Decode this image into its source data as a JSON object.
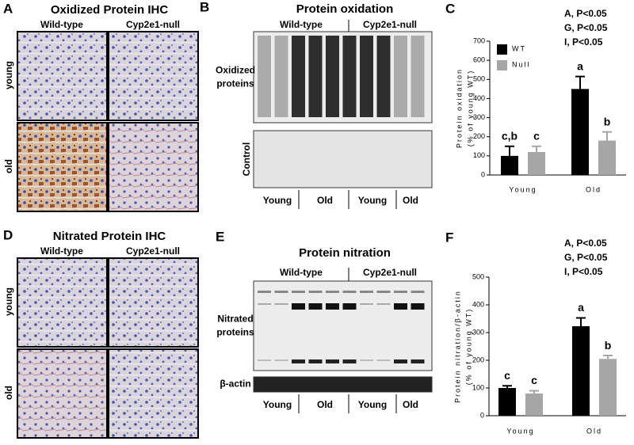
{
  "panels": {
    "A": {
      "label": "A",
      "title": "Oxidized Protein IHC",
      "columns": [
        "Wild-type",
        "Cyp2e1-null"
      ],
      "rows": [
        "young",
        "old"
      ]
    },
    "B": {
      "label": "B",
      "title": "Protein oxidation",
      "groups": [
        "Wild-type",
        "Cyp2e1-null"
      ],
      "band_label": [
        "Oxidized",
        "proteins"
      ],
      "control": "Control",
      "lanes": [
        "Young",
        "Old",
        "Young",
        "Old"
      ]
    },
    "D": {
      "label": "D",
      "title": "Nitrated Protein IHC",
      "columns": [
        "Wild-type",
        "Cyp2e1-null"
      ],
      "rows": [
        "young",
        "old"
      ]
    },
    "E": {
      "label": "E",
      "title": "Protein nitration",
      "groups": [
        "Wild-type",
        "Cyp2e1-null"
      ],
      "band_label": [
        "Nitrated",
        "proteins"
      ],
      "control": "β-actin",
      "lanes": [
        "Young",
        "Old",
        "Young",
        "Old"
      ]
    }
  },
  "chart_data": [
    {
      "type": "bar",
      "label": "C",
      "stats": [
        "A, P<0.05",
        "G, P<0.05",
        "I, P<0.05"
      ],
      "y_label": [
        "Protein oxidation",
        "(% of young WT)"
      ],
      "categories": [
        "Young",
        "Old"
      ],
      "series": [
        {
          "name": "WT",
          "color": "#000000",
          "values": [
            100,
            450
          ],
          "errors": [
            50,
            65
          ],
          "letters": [
            "c,b",
            "a"
          ]
        },
        {
          "name": "Null",
          "color": "#a6a6a6",
          "values": [
            120,
            180
          ],
          "errors": [
            30,
            45
          ],
          "letters": [
            "c",
            "b"
          ]
        }
      ],
      "ylim": [
        0,
        700
      ],
      "yticks": [
        0,
        100,
        200,
        300,
        400,
        500,
        600,
        700
      ],
      "legend": "top-left"
    },
    {
      "type": "bar",
      "label": "F",
      "stats": [
        "A, P<0.05",
        "G, P<0.05",
        "I, P<0.05"
      ],
      "y_label": [
        "Protein nitration/β-actin",
        "(% of young WT)"
      ],
      "categories": [
        "Young",
        "Old"
      ],
      "series": [
        {
          "color": "#000000",
          "values": [
            100,
            323
          ],
          "errors": [
            8,
            30
          ],
          "letters": [
            "c",
            "a"
          ]
        },
        {
          "color": "#a6a6a6",
          "values": [
            80,
            205
          ],
          "errors": [
            10,
            12
          ],
          "letters": [
            "c",
            "b"
          ]
        }
      ],
      "ylim": [
        0,
        500
      ],
      "yticks": [
        0,
        100,
        200,
        300,
        400,
        500
      ]
    }
  ]
}
